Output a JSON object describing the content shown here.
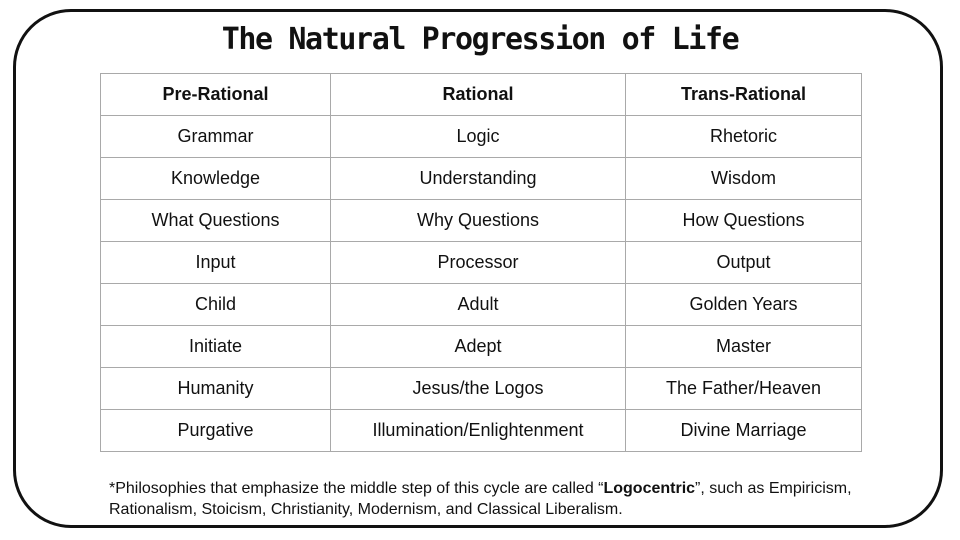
{
  "title": "The Natural Progression of Life",
  "table": {
    "headers": [
      "Pre-Rational",
      "Rational",
      "Trans-Rational"
    ],
    "rows": [
      [
        "Grammar",
        "Logic",
        "Rhetoric"
      ],
      [
        "Knowledge",
        "Understanding",
        "Wisdom"
      ],
      [
        "What Questions",
        "Why Questions",
        "How Questions"
      ],
      [
        "Input",
        "Processor",
        "Output"
      ],
      [
        "Child",
        "Adult",
        "Golden Years"
      ],
      [
        "Initiate",
        "Adept",
        "Master"
      ],
      [
        "Humanity",
        "Jesus/the Logos",
        "The Father/Heaven"
      ],
      [
        "Purgative",
        "Illumination/Enlightenment",
        "Divine Marriage"
      ]
    ]
  },
  "footnote": {
    "before": "*Philosophies that emphasize the middle step of this cycle are called “",
    "bold": "Logocentric",
    "after": "”, such as Empiricism, Rationalism, Stoicism, Christianity, Modernism, and Classical Liberalism."
  }
}
